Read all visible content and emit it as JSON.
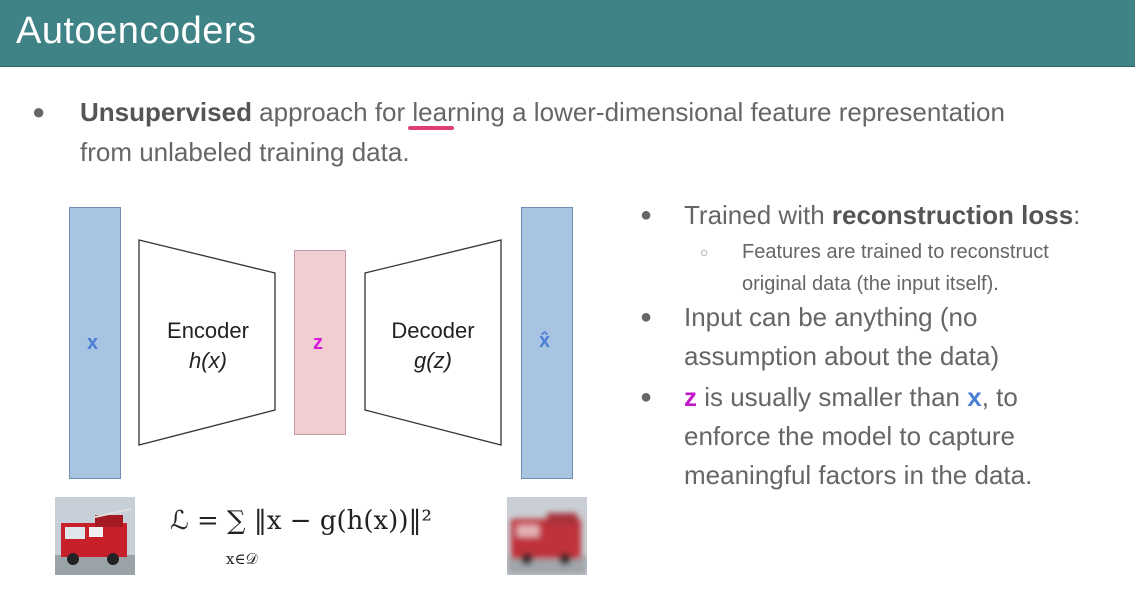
{
  "slide": {
    "title": "Autoencoders",
    "top_bullet": {
      "bold": "Unsupervised",
      "rest_line1": " approach for learning a lower-dimensional feature representation",
      "line2": "from unlabeled training data."
    }
  },
  "diagram": {
    "input_label": "x",
    "latent_label": "z",
    "output_label": "x̂",
    "encoder_title": "Encoder",
    "encoder_func": "h(x)",
    "decoder_title": "Decoder",
    "decoder_func": "g(z)",
    "formula_main": "ℒ = ∑ ‖x − g(h(x))‖²",
    "formula_sub": "x∈𝒟",
    "colors": {
      "input_bar": "#a9c4e3",
      "latent_bar": "#f2cdd2",
      "x_label": "#4b7fd4",
      "z_label": "#d81ad8"
    }
  },
  "bullets": {
    "b1_prefix": "Trained with ",
    "b1_bold": "reconstruction loss",
    "b1_suffix": ":",
    "sub_line1": "Features are trained to reconstruct",
    "sub_line2": "original data (the input itself).",
    "b2_line1": "Input can be anything (no",
    "b2_line2": "assumption about the data)",
    "b3_z": "z",
    "b3_mid": " is usually smaller than ",
    "b3_x": "x",
    "b3_end": ", to",
    "b3_line2": "enforce the model to capture",
    "b3_line3": "meaningful factors in the data."
  }
}
